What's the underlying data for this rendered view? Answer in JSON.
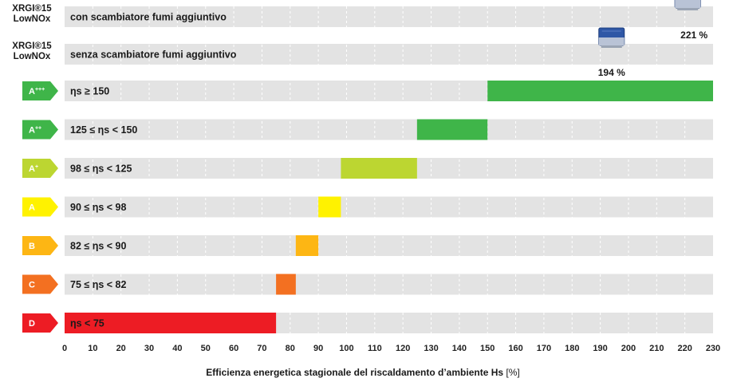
{
  "chart_data": {
    "type": "bar",
    "xlabel": "Efficienza energetica stagionale del riscaldamento d’ambiente Hs",
    "xlabel_unit": "[%]",
    "xlim": [
      0,
      230
    ],
    "xticks": [
      0,
      10,
      20,
      30,
      40,
      50,
      60,
      70,
      80,
      90,
      100,
      110,
      120,
      130,
      140,
      150,
      160,
      170,
      180,
      190,
      200,
      210,
      220,
      230
    ],
    "products": [
      {
        "name": "XRGI®15 LowNOx",
        "description": "con scambiatore fumi aggiuntivo",
        "value": 221,
        "value_label": "221 %"
      },
      {
        "name": "XRGI®15 LowNOx",
        "description": "senza scambiatore fumi aggiuntivo",
        "value": 194,
        "value_label": "194 %"
      }
    ],
    "classes": [
      {
        "class": "A",
        "sup": "+++",
        "range_label": "ηs ≥ 150",
        "from": 150,
        "to": 230,
        "color": "#3fb549"
      },
      {
        "class": "A",
        "sup": "++",
        "range_label": "125 ≤ ηs < 150",
        "from": 125,
        "to": 150,
        "color": "#3fb549"
      },
      {
        "class": "A",
        "sup": "+",
        "range_label": "98 ≤ ηs < 125",
        "from": 98,
        "to": 125,
        "color": "#bcd631"
      },
      {
        "class": "A",
        "sup": "",
        "range_label": "90 ≤ ηs < 98",
        "from": 90,
        "to": 98,
        "color": "#fff200"
      },
      {
        "class": "B",
        "sup": "",
        "range_label": "82 ≤ ηs < 90",
        "from": 82,
        "to": 90,
        "color": "#fdb614"
      },
      {
        "class": "C",
        "sup": "",
        "range_label": "75 ≤ ηs < 82",
        "from": 75,
        "to": 82,
        "color": "#f37021"
      },
      {
        "class": "D",
        "sup": "",
        "range_label": "ηs < 75",
        "from": 0,
        "to": 75,
        "color": "#ed1c24"
      }
    ],
    "badge_colors": [
      "#3fb549",
      "#3fb549",
      "#bcd631",
      "#fff200",
      "#fdb614",
      "#f37021",
      "#ed1c24"
    ],
    "row_color": "#e3e3e3",
    "grid": true
  }
}
